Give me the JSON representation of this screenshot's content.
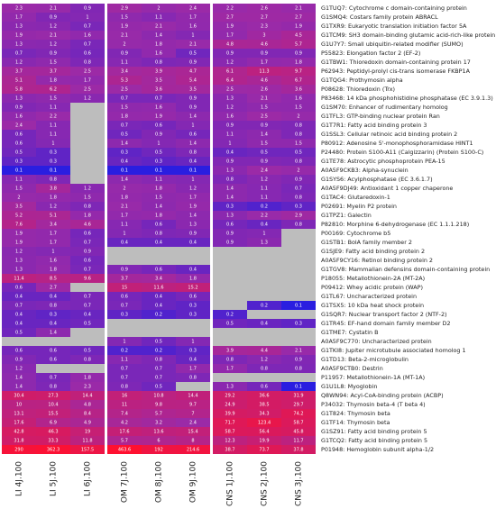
{
  "chart_data": {
    "type": "heatmap",
    "columns": [
      "LI 4J.100",
      "LI 5J.100",
      "LI 6J.100",
      "OM 7J.100",
      "OM 8J.100",
      "OM 9J.100",
      "CNS 1J.100",
      "CNS 2J.100",
      "CNS 3J.100"
    ],
    "rows": [
      "G1TUQ7: Cytochrome c domain-containing protein",
      "G1SMQ4: Costars family protein ABRACL",
      "G1TXR9: Eukaryotic translation initiation factor 5A",
      "G1TCM9: SH3 domain-binding glutamic acid-rich-like protein",
      "G1U7Y7: Small ubiquitin-related modifier (SUMO)",
      "P55823: Elongation factor 2 (EF-2)",
      "G1TBW1: Thioredoxin domain-containing protein 17",
      "P62943: Peptidyl-prolyl cis-trans isomerase FKBP1A",
      "G1TQG4: Prothymosin alpha",
      "P08628: Thioredoxin (Trx)",
      "P83468: 14 kDa phosphohistidine phosphatase (EC 3.9.1.3)",
      "G1SM70: Enhancer of rudimentary homolog",
      "G1TFL3: GTP-binding nuclear protein Ran",
      "G1T7R1: Fatty acid binding protein 3",
      "G1SSL3: Cellular retinoic acid binding protein 2",
      "P80912: Adenosine 5'-monophosphoramidase HINT1",
      "P24480: Protein S100-A11 (Calgizzarin) (Protein S100-C)",
      "G1TE78: Astrocytic phosphoprotein PEA-15",
      "A0A5F9CKB3: Alpha-synuclein",
      "G1SYS6: Acylphosphatase (EC 3.6.1.7)",
      "A0A5F9DJ49: Antioxidant 1 copper chaperone",
      "G1TAC4: Glutaredoxin-1",
      "P02691: Myelin P2 protein",
      "G1TPZ1: Galectin",
      "P82810: Morphine 6-dehydrogenase (EC 1.1.1.218)",
      "P00169: Cytochrome b5",
      "G1STB1: BolA family member 2",
      "G1SJE9: Fatty acid binding protein 2",
      "A0A5F9CY16: Retinol binding protein 2",
      "G1TGV8: Mammalian defensins domain-containing protein",
      "P18055: Metallothionein-2A (MT-2A)",
      "P09412: Whey acidic protein (WAP)",
      "G1TL67: Uncharacterized protein",
      "G1TSX5: 10 kDa heat shock protein",
      "G1SQR7: Nuclear transport factor 2 (NTF-2)",
      "G1TR45: EF-hand domain family member D2",
      "G1TME7: Cystatin B",
      "A0A5F9C770: Uncharacterized protein",
      "G1TKI8: Jupiter microtubule associated homolog 1",
      "G1TD13: Beta-2-microglobulin",
      "A0A5F9CTB0: Destrin",
      "P11957: Metallothionein-1A (MT-1A)",
      "G1U1L8: Myoglobin",
      "Q8WN94: Acyl-CoA-binding protein (ACBP)",
      "P34032: Thymosin beta-4 (T beta 4)",
      "G1T824: Thymosin beta",
      "G1TF14: Thymosin beta",
      "G1SZ91: Fatty acid binding protein 5",
      "G1TCQ2: Fatty acid binding protein 5",
      "P01948: Hemoglobin subunit alpha-1/2"
    ],
    "values": [
      [
        2.3,
        2.1,
        0.9,
        2.9,
        2,
        2.4,
        2.2,
        2.6,
        2.1
      ],
      [
        1.7,
        0.9,
        1,
        1.5,
        1.1,
        1.7,
        2.7,
        2.7,
        2.7
      ],
      [
        1.3,
        1.2,
        0.7,
        1.9,
        2.1,
        1.6,
        1.9,
        2.3,
        1.9
      ],
      [
        1.9,
        2.1,
        1.6,
        2.1,
        1.4,
        1,
        1.7,
        3,
        4.5
      ],
      [
        1.3,
        1.2,
        0.7,
        2,
        1.8,
        2.1,
        4.8,
        4.6,
        5.7
      ],
      [
        0.7,
        0.9,
        0.6,
        0.9,
        1.6,
        0.5,
        0.9,
        0.9,
        0.9
      ],
      [
        1.2,
        1.5,
        0.8,
        1.1,
        0.8,
        0.9,
        1.2,
        1.7,
        1.8
      ],
      [
        3.7,
        3.7,
        2.5,
        3.4,
        3.9,
        4.7,
        6.1,
        11.3,
        9.7
      ],
      [
        5.1,
        1.8,
        1.7,
        5.3,
        3.5,
        5.4,
        6.4,
        4.6,
        6.7
      ],
      [
        5.8,
        6.2,
        2.5,
        2.5,
        3.6,
        3.5,
        2.5,
        2.6,
        3.6
      ],
      [
        1.3,
        1.5,
        1.2,
        0.7,
        0.7,
        0.9,
        1.3,
        2.1,
        1.6
      ],
      [
        0.9,
        1.1,
        null,
        1.5,
        1.6,
        0.9,
        1.2,
        1.5,
        1.5
      ],
      [
        1.6,
        2.2,
        null,
        1.8,
        1.9,
        1.4,
        1.6,
        2.5,
        2
      ],
      [
        2.4,
        1.1,
        null,
        0.7,
        0.6,
        1,
        0.9,
        0.9,
        0.8
      ],
      [
        0.6,
        1.1,
        null,
        0.5,
        0.9,
        0.6,
        1.1,
        1.4,
        0.8
      ],
      [
        0.6,
        1,
        null,
        1.4,
        1,
        1.4,
        1,
        1.5,
        1.5
      ],
      [
        0.5,
        0.3,
        null,
        0.3,
        0.5,
        0.8,
        0.4,
        0.5,
        0.5
      ],
      [
        0.3,
        0.3,
        null,
        0.4,
        0.3,
        0.4,
        0.9,
        0.9,
        0.8
      ],
      [
        0.1,
        0.1,
        null,
        0.1,
        0.1,
        0.1,
        1.3,
        2.4,
        2
      ],
      [
        1.1,
        0.8,
        null,
        1.4,
        1.1,
        1,
        0.8,
        1.2,
        0.9
      ],
      [
        1.5,
        3.8,
        1.2,
        2,
        1.8,
        1.2,
        1.4,
        1.1,
        0.7
      ],
      [
        2,
        1.8,
        1.5,
        1.8,
        1.5,
        1.7,
        1.4,
        1.1,
        0.8
      ],
      [
        3.5,
        1.2,
        0.8,
        2.1,
        1.4,
        1.9,
        0.3,
        0.2,
        0.3
      ],
      [
        5.2,
        5.1,
        1.8,
        1.7,
        1.8,
        1.4,
        1.3,
        2.2,
        2.9
      ],
      [
        7.6,
        3.4,
        4.6,
        1.1,
        0.6,
        1.3,
        0.6,
        0.4,
        0.8
      ],
      [
        1.9,
        1.7,
        0.6,
        1,
        0.8,
        0.9,
        0.9,
        1,
        null
      ],
      [
        1.9,
        1.7,
        0.7,
        0.4,
        0.4,
        0.4,
        0.9,
        1.3,
        null
      ],
      [
        1.2,
        1,
        0.9,
        null,
        null,
        null,
        null,
        null,
        null
      ],
      [
        1.3,
        1.6,
        0.6,
        null,
        null,
        null,
        null,
        null,
        null
      ],
      [
        1.3,
        1.8,
        0.7,
        0.9,
        0.6,
        0.4,
        null,
        null,
        null
      ],
      [
        11.4,
        8.5,
        9.6,
        3.7,
        3.4,
        1.8,
        null,
        null,
        null
      ],
      [
        0.6,
        2.7,
        null,
        15,
        11.6,
        15.2,
        null,
        null,
        null
      ],
      [
        0.4,
        0.4,
        0.7,
        0.6,
        0.4,
        0.6,
        null,
        null,
        null
      ],
      [
        0.7,
        0.8,
        0.7,
        0.7,
        0.4,
        0.3,
        null,
        0.2,
        0.1
      ],
      [
        0.4,
        0.3,
        0.4,
        0.3,
        0.2,
        0.3,
        0.2,
        null,
        null
      ],
      [
        0.4,
        0.4,
        0.5,
        null,
        null,
        null,
        0.5,
        0.4,
        0.3
      ],
      [
        0.5,
        1.4,
        null,
        null,
        null,
        null,
        null,
        null,
        null
      ],
      [
        null,
        null,
        null,
        1,
        0.5,
        1,
        null,
        null,
        null
      ],
      [
        0.6,
        0.6,
        0.5,
        0.2,
        0.2,
        0.3,
        3.9,
        4.4,
        2.1
      ],
      [
        0.9,
        0.6,
        0.8,
        1.1,
        0.8,
        0.4,
        0.8,
        1.2,
        0.9
      ],
      [
        1.2,
        null,
        null,
        0.7,
        0.7,
        1.7,
        1.7,
        0.8,
        0.8
      ],
      [
        1.4,
        0.7,
        1.8,
        0.7,
        0.7,
        0.8,
        null,
        null,
        null
      ],
      [
        1.4,
        0.8,
        2.3,
        0.8,
        0.5,
        null,
        1.3,
        0.6,
        0.1
      ],
      [
        30.4,
        27.3,
        14.4,
        16,
        10.8,
        14.4,
        29.2,
        36.6,
        31.9
      ],
      [
        10,
        10.4,
        4.8,
        11,
        9.8,
        9.7,
        24.9,
        38.5,
        29.7
      ],
      [
        13.1,
        15.5,
        8.4,
        7.4,
        5.7,
        7,
        39.9,
        34.3,
        74.2
      ],
      [
        17.6,
        6.9,
        4.9,
        4.2,
        3.2,
        2.4,
        71.7,
        123.4,
        58.7
      ],
      [
        42.8,
        46.3,
        19,
        17.6,
        13.6,
        15.4,
        58.7,
        56.4,
        45.8
      ],
      [
        31.8,
        33.3,
        11.8,
        5.7,
        6,
        8,
        12.3,
        19.9,
        11.7
      ],
      [
        290,
        362.3,
        157.5,
        463.6,
        192,
        214.6,
        38.7,
        73.7,
        37.8
      ]
    ],
    "null_color": "#bdbdbd",
    "low_color": "#2a1ee0",
    "mid_color": "#9a2aa8",
    "high_color": "#ff1030"
  }
}
